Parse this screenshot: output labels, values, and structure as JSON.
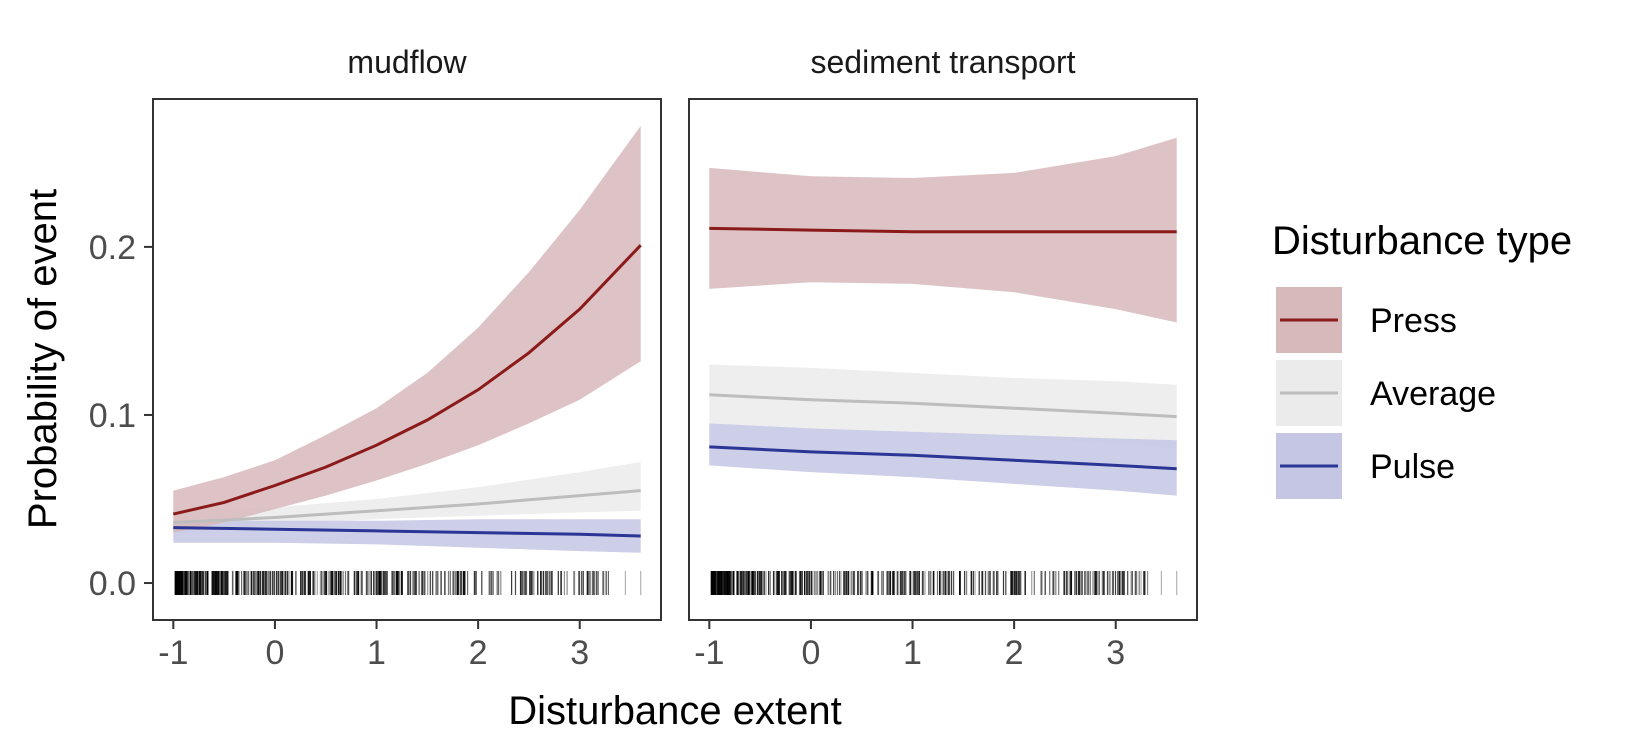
{
  "chart_data": {
    "type": "line",
    "xlabel": "Disturbance extent",
    "ylabel": "Probability of event",
    "xlim": [
      -1.2,
      3.8
    ],
    "ylim": [
      -0.022,
      0.288
    ],
    "x_ticks": [
      -1,
      0,
      1,
      2,
      3
    ],
    "x_tick_labels": [
      "-1",
      "0",
      "1",
      "2",
      "3"
    ],
    "y_ticks": [
      0.0,
      0.1,
      0.2
    ],
    "y_tick_labels": [
      "0.0",
      "0.1",
      "0.2"
    ],
    "grid": false,
    "legend": {
      "title": "Disturbance type",
      "placement": "right",
      "entries": [
        {
          "name": "Press",
          "line_color": "#8b1a1a",
          "fill_color": "#d7b9bb"
        },
        {
          "name": "Average",
          "line_color": "#bdbdbd",
          "fill_color": "#ebebeb"
        },
        {
          "name": "Pulse",
          "line_color": "#2b3595",
          "fill_color": "#c4c6e3"
        }
      ]
    },
    "panels": [
      {
        "strip": "mudflow",
        "series": [
          {
            "name": "Average",
            "x": [
              -1.0,
              0.0,
              1.0,
              2.0,
              3.0,
              3.6
            ],
            "y": [
              0.036,
              0.039,
              0.043,
              0.047,
              0.052,
              0.055
            ],
            "lower": [
              0.03,
              0.035,
              0.038,
              0.04,
              0.042,
              0.043
            ],
            "upper": [
              0.043,
              0.045,
              0.05,
              0.057,
              0.066,
              0.072
            ]
          },
          {
            "name": "Pulse",
            "x": [
              -1.0,
              0.0,
              1.0,
              2.0,
              3.0,
              3.6
            ],
            "y": [
              0.033,
              0.032,
              0.031,
              0.03,
              0.029,
              0.028
            ],
            "lower": [
              0.024,
              0.024,
              0.023,
              0.021,
              0.019,
              0.018
            ],
            "upper": [
              0.037,
              0.037,
              0.037,
              0.038,
              0.038,
              0.038
            ]
          },
          {
            "name": "Press",
            "x": [
              -1.0,
              -0.5,
              0.0,
              0.5,
              1.0,
              1.5,
              2.0,
              2.5,
              3.0,
              3.6
            ],
            "y": [
              0.041,
              0.048,
              0.058,
              0.069,
              0.082,
              0.097,
              0.115,
              0.137,
              0.163,
              0.201
            ],
            "lower": [
              0.03,
              0.036,
              0.044,
              0.052,
              0.061,
              0.071,
              0.082,
              0.095,
              0.109,
              0.132
            ],
            "upper": [
              0.055,
              0.063,
              0.073,
              0.088,
              0.104,
              0.125,
              0.152,
              0.185,
              0.222,
              0.272
            ]
          }
        ]
      },
      {
        "strip": "sediment transport",
        "series": [
          {
            "name": "Average",
            "x": [
              -1.0,
              0.0,
              1.0,
              2.0,
              3.0,
              3.6
            ],
            "y": [
              0.112,
              0.109,
              0.107,
              0.104,
              0.101,
              0.099
            ],
            "lower": [
              0.095,
              0.092,
              0.09,
              0.087,
              0.083,
              0.08
            ],
            "upper": [
              0.13,
              0.128,
              0.125,
              0.122,
              0.12,
              0.118
            ]
          },
          {
            "name": "Pulse",
            "x": [
              -1.0,
              0.0,
              1.0,
              2.0,
              3.0,
              3.6
            ],
            "y": [
              0.081,
              0.078,
              0.076,
              0.073,
              0.07,
              0.068
            ],
            "lower": [
              0.07,
              0.066,
              0.063,
              0.059,
              0.055,
              0.052
            ],
            "upper": [
              0.095,
              0.092,
              0.09,
              0.088,
              0.086,
              0.085
            ]
          },
          {
            "name": "Press",
            "x": [
              -1.0,
              0.0,
              1.0,
              2.0,
              3.0,
              3.6
            ],
            "y": [
              0.211,
              0.21,
              0.209,
              0.209,
              0.209,
              0.209
            ],
            "lower": [
              0.175,
              0.179,
              0.178,
              0.173,
              0.163,
              0.155
            ],
            "upper": [
              0.247,
              0.242,
              0.241,
              0.244,
              0.254,
              0.265
            ]
          }
        ]
      }
    ]
  }
}
